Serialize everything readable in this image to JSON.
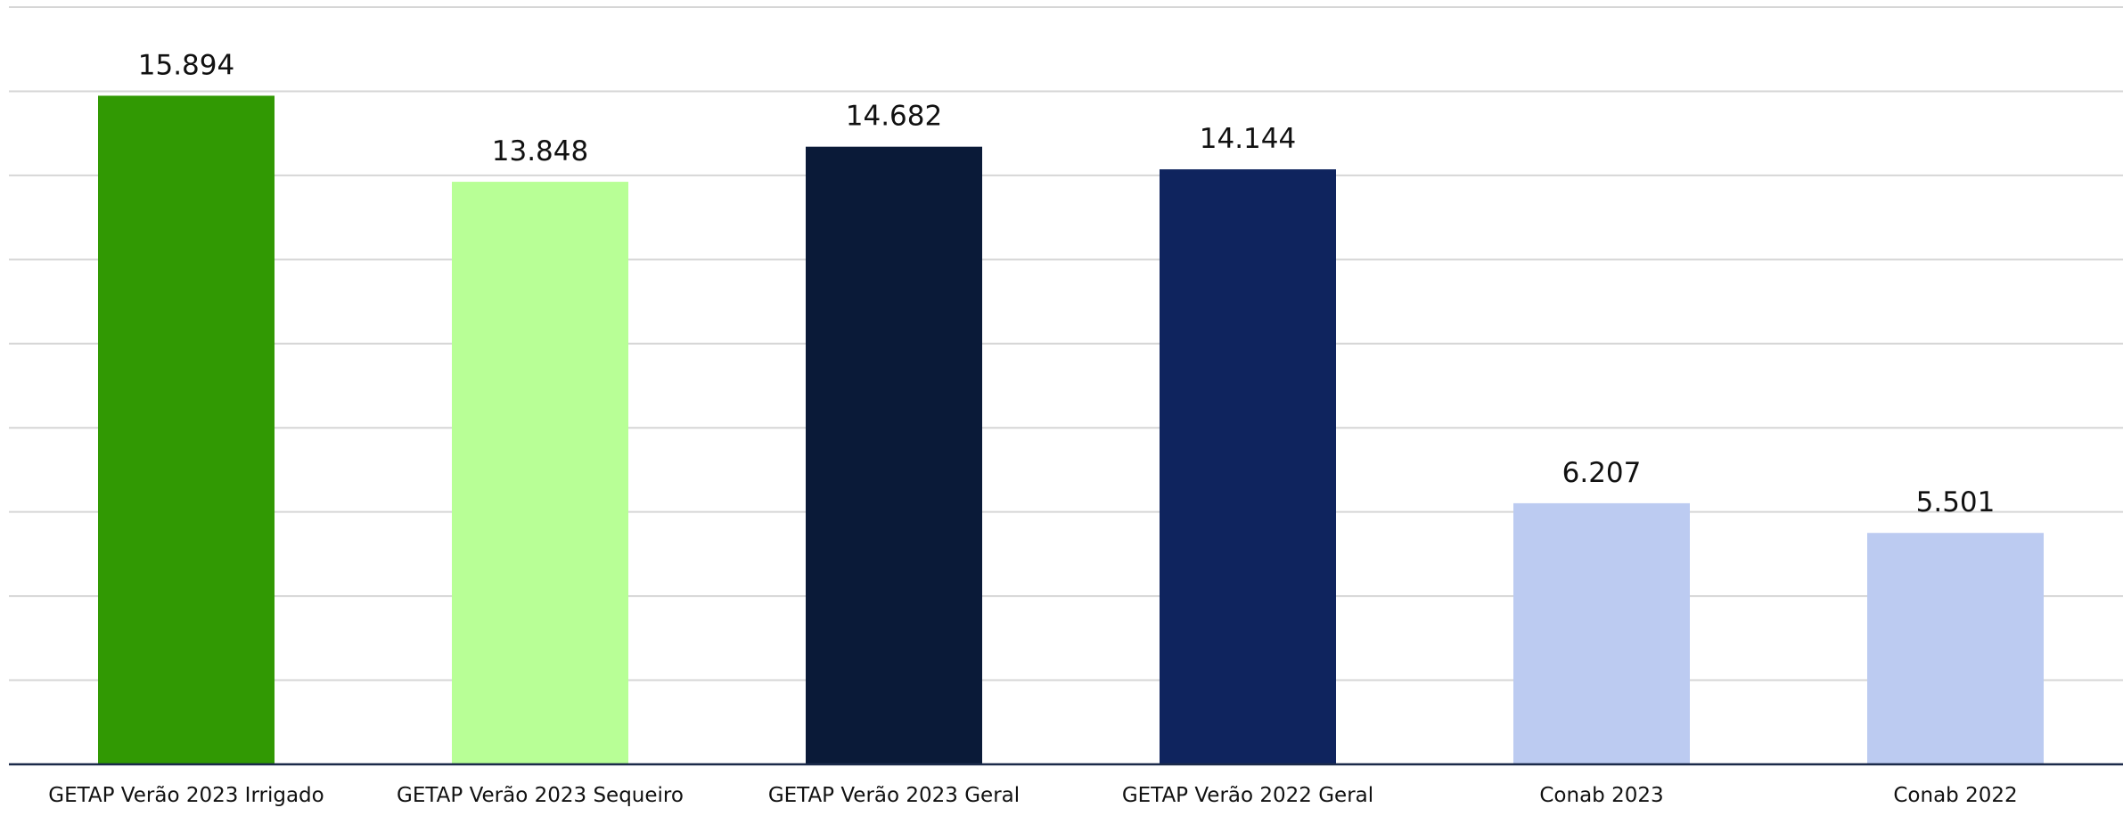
{
  "chart_data": {
    "type": "bar",
    "title": "",
    "xlabel": "",
    "ylabel": "",
    "categories": [
      "GETAP Verão 2023 Irrigado",
      "GETAP Verão 2023 Sequeiro",
      "GETAP Verão 2023 Geral",
      "GETAP Verão 2022 Geral",
      "Conab 2023",
      "Conab 2022"
    ],
    "values": [
      15.894,
      13.848,
      14.682,
      14.144,
      6.207,
      5.501
    ],
    "value_labels": [
      "15.894",
      "13.848",
      "14.682",
      "14.144",
      "6.207",
      "5.501"
    ],
    "colors": [
      "#319903",
      "#b8ff96",
      "#0a1a38",
      "#0f245e",
      "#bccbf1",
      "#bccbf1"
    ],
    "ylim": [
      0,
      18
    ],
    "grid_step": 2,
    "grid": true,
    "y_tick_labels_visible": false,
    "legend": "none"
  }
}
